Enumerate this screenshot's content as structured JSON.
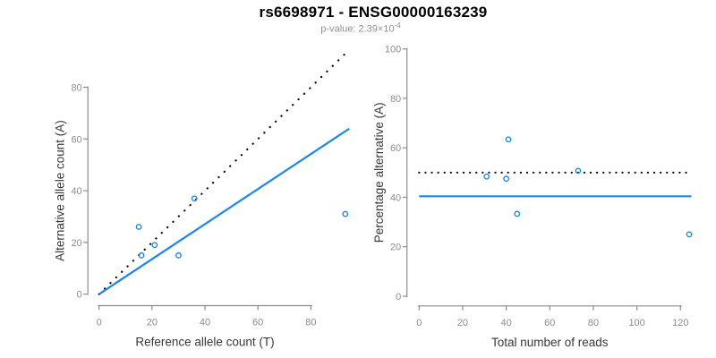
{
  "header": {
    "title": "rs6698971 - ENSG00000163239",
    "subtitle_text": "p-value: 2.39×10",
    "subtitle_exponent": "-4"
  },
  "colors": {
    "background": "#FFFFFF",
    "accent_blue": "#1C86EE",
    "dotted_line_black": "#000000",
    "axis_gray": "#8C8C8C",
    "tick_label_gray": "#8C8C8C",
    "axis_title_dark": "#383838",
    "title_black": "#000000",
    "subtitle_gray": "#909090"
  },
  "chart_data": [
    {
      "type": "scatter",
      "name": "allele-count-scatter",
      "xlabel": "Reference allele count (T)",
      "ylabel": "Alternative allele count (A)",
      "xticks": [
        0,
        20,
        40,
        60,
        80
      ],
      "yticks": [
        0,
        20,
        40,
        60,
        80
      ],
      "xlim": [
        -3.72,
        96.72
      ],
      "ylim": [
        -3.72,
        96.72
      ],
      "grid": false,
      "legend": null,
      "marker": "open-circle",
      "point_color": "#1C86EE",
      "points": [
        [
          15,
          26
        ],
        [
          16,
          15
        ],
        [
          21,
          19
        ],
        [
          30,
          15
        ],
        [
          36,
          37
        ],
        [
          93,
          31
        ]
      ],
      "lines": [
        {
          "name": "identity-line",
          "style": "dotted",
          "color": "#000000",
          "x1": 0,
          "y1": 0,
          "x2": 94,
          "y2": 94
        },
        {
          "name": "fit-line",
          "style": "solid",
          "color": "#1C86EE",
          "x1": 0,
          "y1": 0,
          "x2": 94.5,
          "y2": 64
        }
      ]
    },
    {
      "type": "scatter",
      "name": "percentage-vs-reads-scatter",
      "xlabel": "Total number of reads",
      "ylabel": "Percentage alternative (A)",
      "xticks": [
        0,
        20,
        40,
        60,
        80,
        100,
        120
      ],
      "yticks": [
        0,
        20,
        40,
        60,
        80,
        100
      ],
      "xlim": [
        -4.96,
        128.96
      ],
      "ylim": [
        -4,
        104
      ],
      "grid": false,
      "legend": null,
      "marker": "open-circle",
      "point_color": "#1C86EE",
      "points": [
        [
          31,
          48.4
        ],
        [
          40,
          47.5
        ],
        [
          41,
          63.4
        ],
        [
          45,
          33.3
        ],
        [
          73,
          50.7
        ],
        [
          124,
          25
        ]
      ],
      "lines": [
        {
          "name": "expected-50pct-line",
          "style": "dotted",
          "color": "#000000",
          "x1": 0,
          "y1": 50,
          "x2": 125,
          "y2": 50
        },
        {
          "name": "mean-percentage-line",
          "style": "solid",
          "color": "#1C86EE",
          "x1": 0,
          "y1": 40.4,
          "x2": 125,
          "y2": 40.4
        }
      ]
    }
  ]
}
